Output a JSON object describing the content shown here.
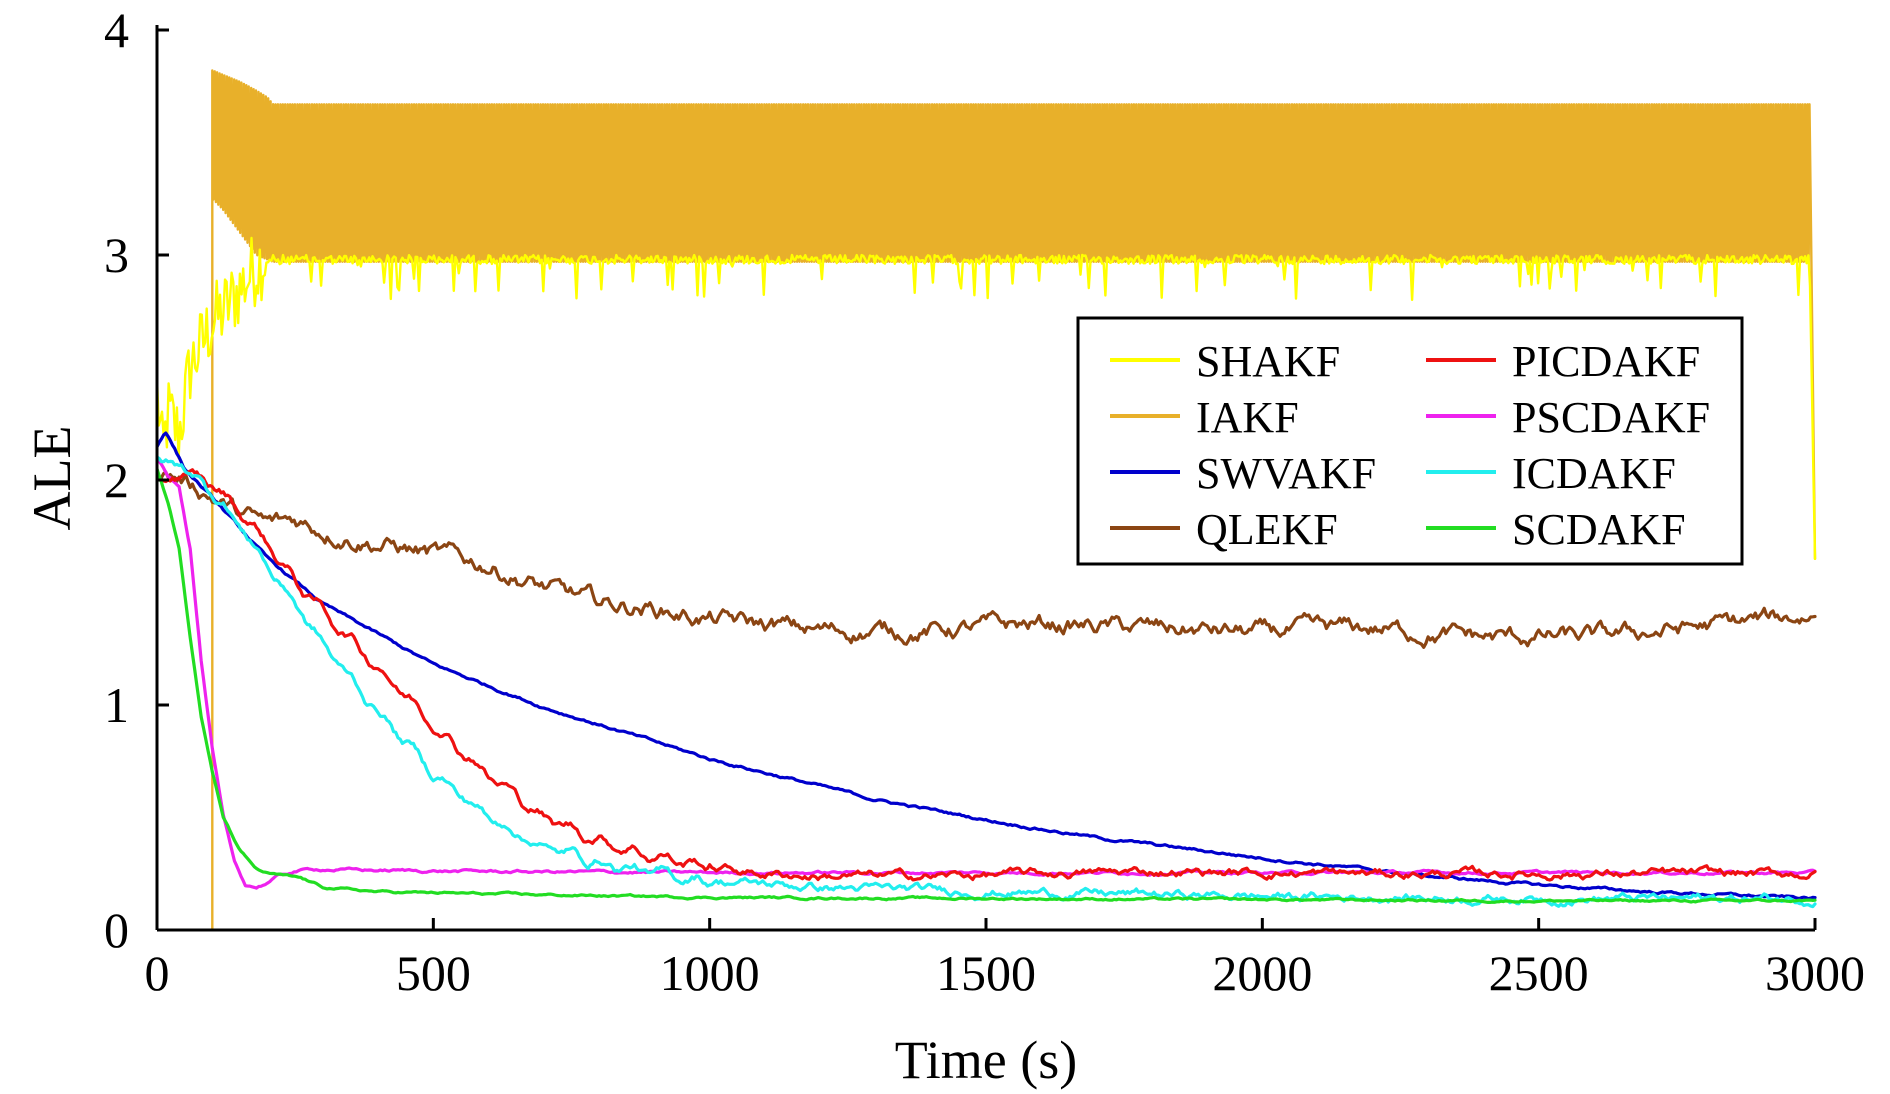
{
  "chart_data": {
    "type": "line",
    "title": "",
    "xlabel": "Time (s)",
    "ylabel": "ALE",
    "xlim": [
      0,
      3000
    ],
    "ylim": [
      0,
      4
    ],
    "xticks": [
      0,
      500,
      1000,
      1500,
      2000,
      2500,
      3000
    ],
    "yticks": [
      0,
      1,
      2,
      3,
      4
    ],
    "grid": false,
    "legend": {
      "placement": "upper-right",
      "columns": 2
    },
    "series": [
      {
        "name": "SHAKF",
        "color": "#ffff00",
        "x": [
          0,
          10,
          20,
          40,
          60,
          80,
          100,
          120,
          150,
          180,
          200,
          300,
          500,
          1000,
          1500,
          2000,
          2500,
          2990,
          3000
        ],
        "y": [
          2.4,
          2.1,
          2.3,
          2.2,
          2.5,
          2.6,
          2.7,
          2.75,
          2.85,
          2.95,
          3.0,
          3.0,
          3.0,
          3.0,
          3.0,
          3.0,
          3.0,
          3.0,
          1.65
        ]
      },
      {
        "name": "IAKF",
        "color": "#e8b02a",
        "x": [
          0,
          99,
          100,
          101,
          120,
          150,
          180,
          200,
          210,
          300,
          1000,
          2000,
          2990,
          3000
        ],
        "y_min": [
          null,
          null,
          3.25,
          3.25,
          3.2,
          3.1,
          3.0,
          2.98,
          2.97,
          2.97,
          2.97,
          2.97,
          2.97,
          1.65
        ],
        "y_max": [
          null,
          null,
          3.82,
          3.82,
          3.8,
          3.77,
          3.73,
          3.7,
          3.67,
          3.67,
          3.67,
          3.67,
          3.67,
          1.65
        ]
      },
      {
        "name": "SWVAKF",
        "color": "#0000cc",
        "x": [
          0,
          15,
          30,
          50,
          100,
          200,
          300,
          500,
          700,
          1000,
          1300,
          1500,
          1700,
          2000,
          2300,
          2500,
          2700,
          3000
        ],
        "y": [
          2.15,
          2.22,
          2.15,
          2.05,
          1.92,
          1.65,
          1.45,
          1.18,
          0.99,
          0.76,
          0.58,
          0.49,
          0.41,
          0.32,
          0.24,
          0.2,
          0.17,
          0.14
        ]
      },
      {
        "name": "QLEKF",
        "color": "#8b4513",
        "x": [
          0,
          50,
          100,
          150,
          200,
          250,
          300,
          400,
          500,
          600,
          700,
          800,
          900,
          1000,
          1200,
          1400,
          1600,
          1800,
          2000,
          2200,
          2400,
          2600,
          2800,
          3000
        ],
        "y": [
          2.05,
          2.0,
          1.93,
          1.85,
          1.8,
          1.82,
          1.78,
          1.72,
          1.67,
          1.62,
          1.52,
          1.45,
          1.43,
          1.38,
          1.33,
          1.33,
          1.36,
          1.34,
          1.32,
          1.34,
          1.3,
          1.3,
          1.35,
          1.4
        ]
      },
      {
        "name": "PICDAKF",
        "color": "#ee1111",
        "x": [
          0,
          50,
          100,
          150,
          200,
          250,
          300,
          400,
          500,
          600,
          700,
          800,
          900,
          1000,
          1100,
          1200,
          1400,
          1800,
          2200,
          2600,
          3000
        ],
        "y": [
          2.0,
          2.02,
          1.98,
          1.86,
          1.72,
          1.55,
          1.42,
          1.17,
          0.92,
          0.69,
          0.5,
          0.4,
          0.33,
          0.28,
          0.25,
          0.24,
          0.24,
          0.26,
          0.25,
          0.25,
          0.25
        ]
      },
      {
        "name": "PSCDAKF",
        "color": "#ee22ee",
        "x": [
          0,
          20,
          40,
          60,
          80,
          100,
          120,
          140,
          160,
          180,
          200,
          220,
          250,
          280,
          300,
          400,
          600,
          1000,
          1500,
          2000,
          2500,
          3000
        ],
        "y": [
          2.1,
          2.02,
          1.98,
          1.7,
          1.2,
          0.8,
          0.5,
          0.3,
          0.2,
          0.19,
          0.21,
          0.24,
          0.26,
          0.27,
          0.27,
          0.265,
          0.26,
          0.255,
          0.255,
          0.255,
          0.255,
          0.255
        ]
      },
      {
        "name": "ICDAKF",
        "color": "#22eeee",
        "x": [
          0,
          50,
          100,
          150,
          200,
          250,
          300,
          400,
          500,
          600,
          700,
          800,
          900,
          1000,
          1200,
          1500,
          2000,
          2500,
          3000
        ],
        "y": [
          2.1,
          2.05,
          1.95,
          1.8,
          1.62,
          1.45,
          1.27,
          0.97,
          0.7,
          0.5,
          0.37,
          0.3,
          0.25,
          0.22,
          0.19,
          0.17,
          0.15,
          0.14,
          0.14
        ]
      },
      {
        "name": "SCDAKF",
        "color": "#22dd22",
        "x": [
          0,
          20,
          40,
          60,
          80,
          100,
          120,
          150,
          180,
          200,
          230,
          260,
          300,
          400,
          600,
          1000,
          1500,
          2000,
          2500,
          3000
        ],
        "y": [
          2.05,
          1.9,
          1.7,
          1.3,
          0.95,
          0.7,
          0.5,
          0.35,
          0.27,
          0.25,
          0.24,
          0.23,
          0.19,
          0.17,
          0.16,
          0.145,
          0.14,
          0.135,
          0.13,
          0.13
        ]
      }
    ]
  }
}
